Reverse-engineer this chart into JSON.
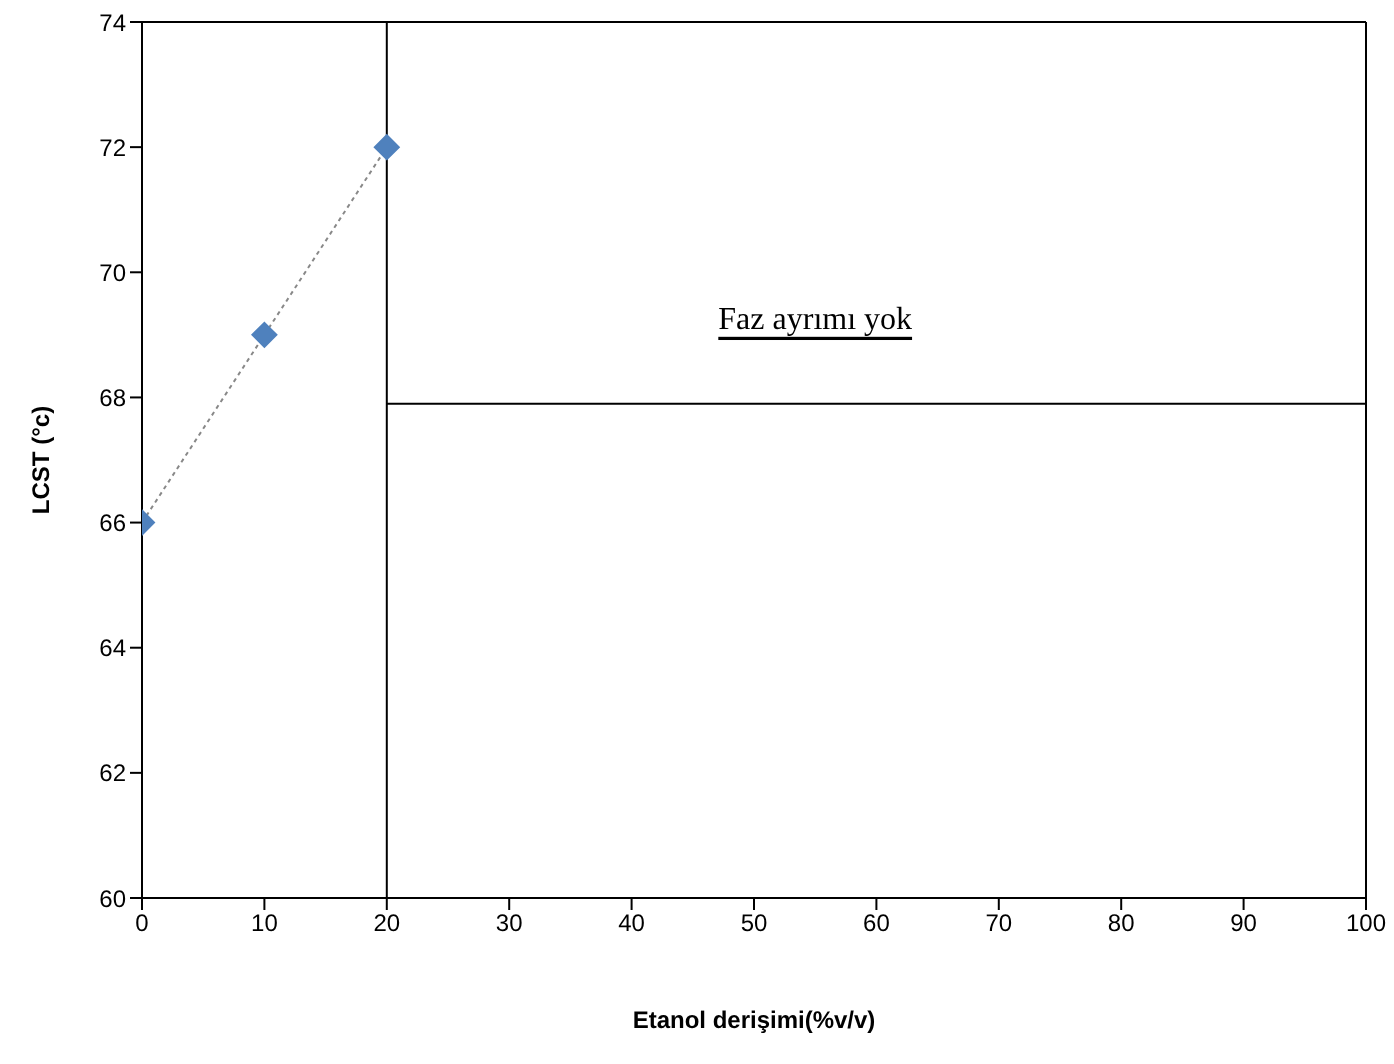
{
  "chart_data": {
    "type": "line",
    "xlabel": "Etanol derişimi(%v/v)",
    "ylabel": "LCST (°c)",
    "x": [
      0,
      10,
      20
    ],
    "series": [
      {
        "color": "#4f81bd",
        "values": [
          66,
          69,
          72
        ],
        "marker": "diamond",
        "line_style": "dotted"
      },
      {
        "type": "line",
        "color": "#000000",
        "x": [
          20,
          100
        ],
        "values": [
          67.9,
          67.9
        ],
        "marker": "none",
        "line_style": "solid"
      }
    ],
    "xlim": [
      0,
      100
    ],
    "xticks": [
      0,
      10,
      20,
      30,
      40,
      50,
      60,
      70,
      80,
      90,
      100
    ],
    "ylim": [
      60,
      74
    ],
    "yticks": [
      60,
      62,
      64,
      66,
      68,
      70,
      72,
      74
    ],
    "ref_lines": [
      {
        "axis": "x",
        "value": 20,
        "color": "#000000"
      }
    ],
    "annotations": [
      "Faz ayrımı yok"
    ]
  }
}
